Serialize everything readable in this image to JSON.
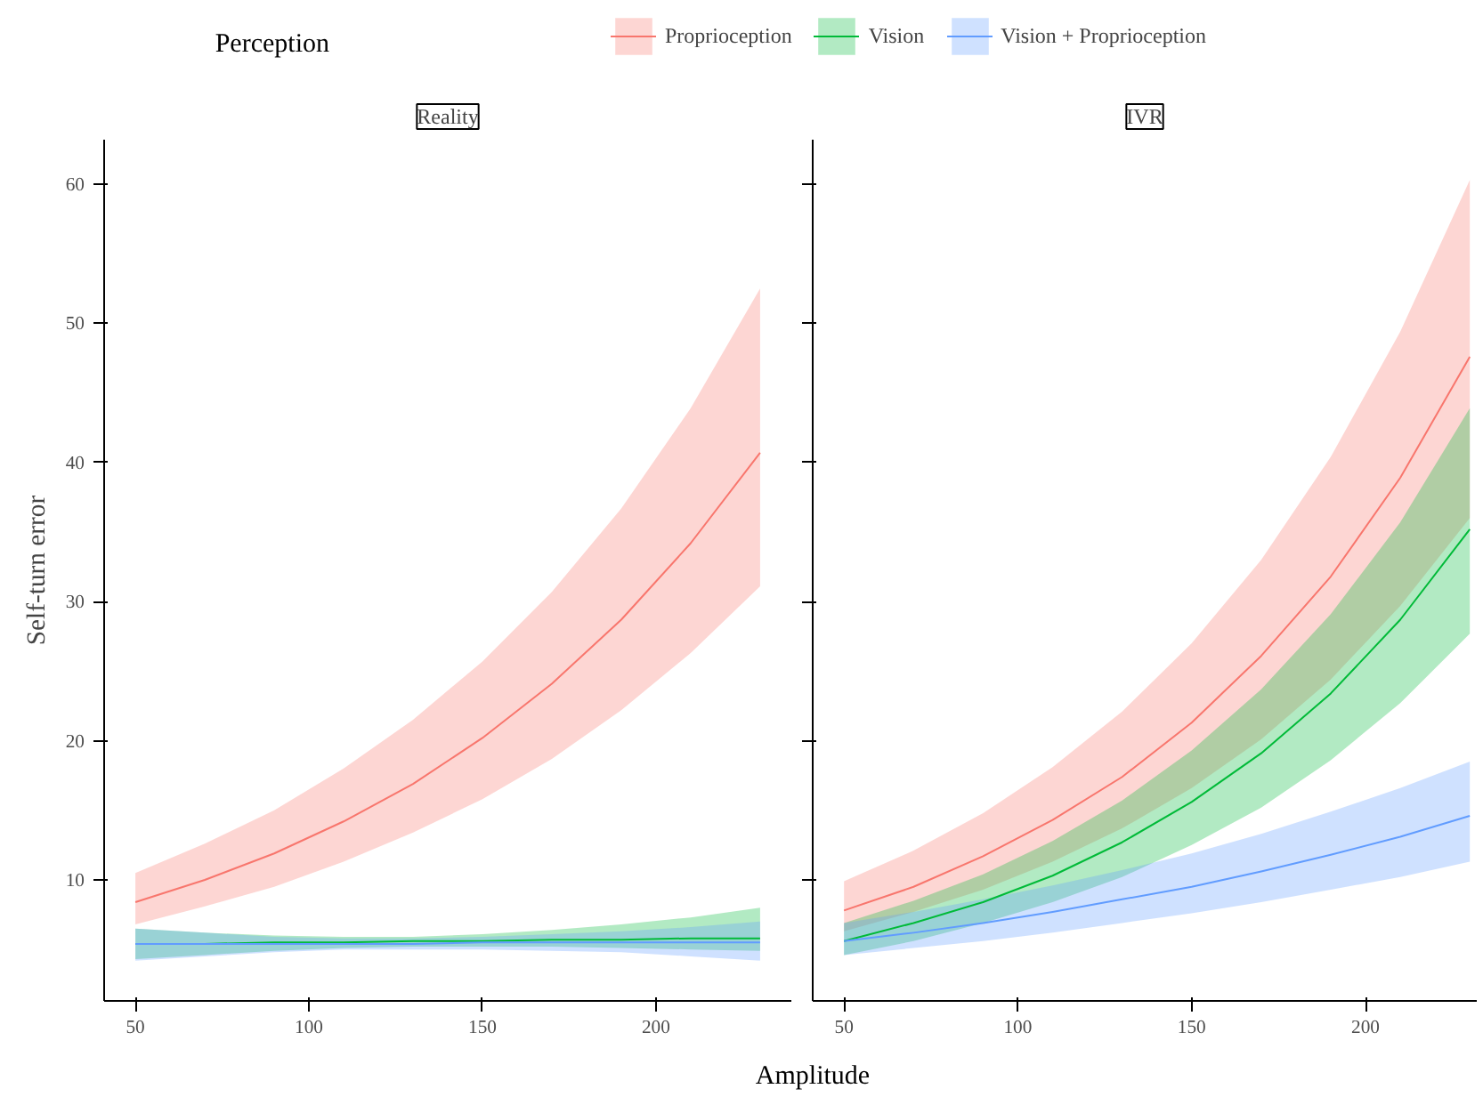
{
  "chart_data": [
    {
      "type": "line",
      "title": "Reality",
      "xlabel": "Amplitude",
      "ylabel": "Self-turn error",
      "legend_title": "Perception",
      "legend": "top",
      "x": [
        50,
        70,
        90,
        110,
        130,
        150,
        170,
        190,
        210,
        230
      ],
      "xlim": [
        41,
        239
      ],
      "xticks": [
        50,
        100,
        150,
        200
      ],
      "ylim": [
        1.3,
        63.2
      ],
      "yticks": [
        10,
        20,
        30,
        40,
        50,
        60
      ],
      "grid": false,
      "series": [
        {
          "name": "Proprioception",
          "color": "#f8766d",
          "values": [
            8.4,
            10.0,
            11.9,
            14.2,
            16.9,
            20.2,
            24.1,
            28.7,
            34.2,
            40.7
          ],
          "lower": [
            6.8,
            8.1,
            9.5,
            11.3,
            13.4,
            15.8,
            18.7,
            22.2,
            26.3,
            31.1
          ],
          "upper": [
            10.5,
            12.6,
            15.0,
            18.0,
            21.5,
            25.7,
            30.7,
            36.7,
            43.9,
            52.5
          ]
        },
        {
          "name": "Vision",
          "color": "#00ba38",
          "values": [
            5.4,
            5.4,
            5.5,
            5.5,
            5.6,
            5.6,
            5.7,
            5.7,
            5.8,
            5.8
          ],
          "lower": [
            4.3,
            4.6,
            4.9,
            5.1,
            5.2,
            5.2,
            5.2,
            5.1,
            5.0,
            4.9
          ],
          "upper": [
            6.5,
            6.2,
            6.0,
            5.9,
            5.9,
            6.1,
            6.4,
            6.8,
            7.3,
            8.0
          ]
        },
        {
          "name": "Vision + Proprioception",
          "color": "#619cff",
          "values": [
            5.4,
            5.4,
            5.4,
            5.4,
            5.4,
            5.5,
            5.5,
            5.5,
            5.5,
            5.5
          ],
          "lower": [
            4.2,
            4.5,
            4.8,
            5.0,
            5.0,
            5.0,
            4.9,
            4.8,
            4.5,
            4.2
          ],
          "upper": [
            6.5,
            6.2,
            5.9,
            5.8,
            5.8,
            5.9,
            6.1,
            6.3,
            6.6,
            7.0
          ]
        }
      ]
    },
    {
      "type": "line",
      "title": "IVR",
      "tick_labels": "x",
      "x": [
        50,
        70,
        90,
        110,
        130,
        150,
        170,
        190,
        210,
        230
      ],
      "xlim": [
        41,
        232
      ],
      "xticks": [
        50,
        100,
        150,
        200
      ],
      "ylim": [
        1.3,
        63.2
      ],
      "yticks": [
        10,
        20,
        30,
        40,
        50,
        60
      ],
      "grid": false,
      "series": [
        {
          "color": "#f8766d",
          "values": [
            7.8,
            9.5,
            11.7,
            14.3,
            17.4,
            21.3,
            26.1,
            31.8,
            38.9,
            47.6
          ],
          "lower": [
            6.3,
            7.7,
            9.3,
            11.3,
            13.7,
            16.6,
            20.1,
            24.4,
            29.7,
            36.0
          ],
          "upper": [
            9.9,
            12.1,
            14.8,
            18.1,
            22.1,
            27.0,
            33.0,
            40.4,
            49.4,
            60.3
          ]
        },
        {
          "color": "#00ba38",
          "values": [
            5.6,
            6.9,
            8.4,
            10.3,
            12.7,
            15.6,
            19.1,
            23.4,
            28.7,
            35.2
          ],
          "lower": [
            4.6,
            5.6,
            6.9,
            8.4,
            10.2,
            12.5,
            15.2,
            18.6,
            22.7,
            27.7
          ],
          "upper": [
            6.9,
            8.5,
            10.4,
            12.8,
            15.7,
            19.3,
            23.7,
            29.1,
            35.7,
            43.9
          ]
        },
        {
          "color": "#619cff",
          "values": [
            5.6,
            6.2,
            6.9,
            7.7,
            8.6,
            9.5,
            10.6,
            11.8,
            13.1,
            14.6
          ],
          "lower": [
            4.6,
            5.1,
            5.6,
            6.2,
            6.9,
            7.6,
            8.4,
            9.3,
            10.2,
            11.3
          ],
          "upper": [
            6.9,
            7.7,
            8.6,
            9.6,
            10.7,
            11.9,
            13.3,
            14.9,
            16.6,
            18.5
          ]
        }
      ]
    }
  ]
}
